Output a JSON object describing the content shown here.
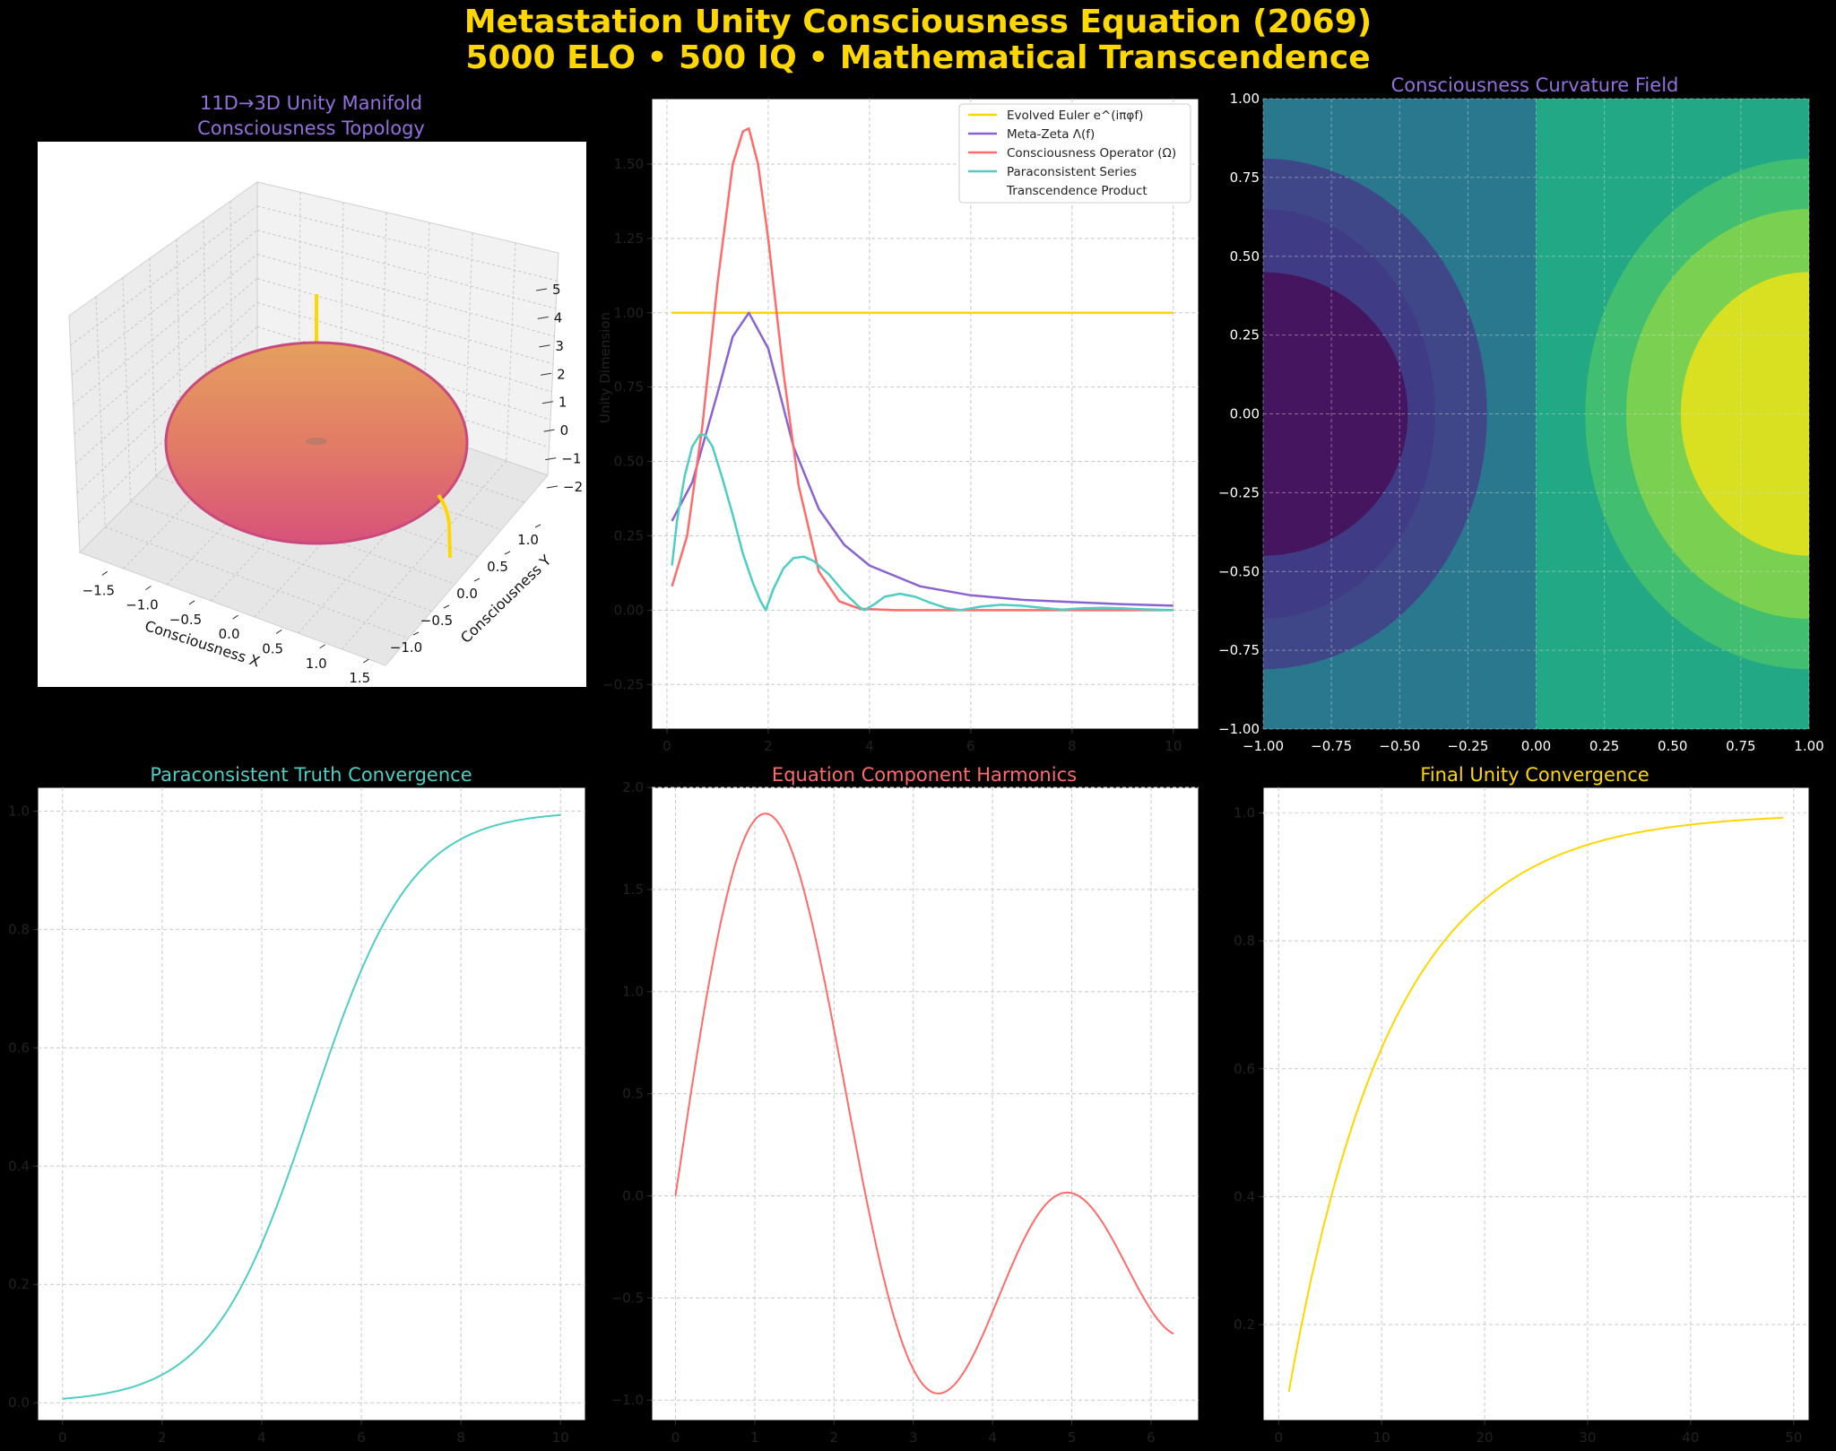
{
  "suptitle": [
    "Metastation Unity Consciousness Equation (2069)",
    "5000 ELO • 500 IQ • Mathematical Transcendence"
  ],
  "colors": {
    "gold": "#FFD700",
    "violet": "#9370DB",
    "red": "#FF6B6B",
    "teal": "#4ECDC4",
    "purple_line": "#8A63D2"
  },
  "chart_data": [
    {
      "id": "manifold",
      "type": "surface3d",
      "title": [
        "11D→3D Unity Manifold",
        "Consciousness Topology"
      ],
      "xlabel": "Consciousness X",
      "ylabel": "Consciousness Y",
      "xticks": [
        "−1.5",
        "−1.0",
        "−0.5",
        "0.0",
        "0.5",
        "1.0",
        "1.5"
      ],
      "yticks": [
        "−1.0",
        "−0.5",
        "0.0",
        "0.5",
        "1.0"
      ],
      "zticks": [
        "−2",
        "−1",
        "0",
        "1",
        "2",
        "3",
        "4",
        "5"
      ],
      "surface": "torus",
      "colormap": "plasma",
      "line_color": "#FFD700"
    },
    {
      "id": "components",
      "type": "line",
      "ylabel": "Unity Dimension",
      "xlim": [
        -0.3,
        10.5
      ],
      "ylim": [
        -0.4,
        1.72
      ],
      "xticks": [
        0,
        2,
        4,
        6,
        8,
        10
      ],
      "yticks": [
        -0.25,
        0.0,
        0.25,
        0.5,
        0.75,
        1.0,
        1.25,
        1.5
      ],
      "legend_position": "top-right",
      "series": [
        {
          "name": "Evolved Euler e^(iπφf)",
          "color": "#FFD700",
          "x": [
            0.1,
            10
          ],
          "y": [
            1.0,
            1.0
          ]
        },
        {
          "name": "Meta-Zeta Λ(f)",
          "color": "#8A63D2",
          "x": [
            0.1,
            0.5,
            1.0,
            1.3,
            1.618,
            2.0,
            2.5,
            3.0,
            3.5,
            4,
            5,
            6,
            7,
            8,
            9,
            10
          ],
          "y": [
            0.3,
            0.43,
            0.73,
            0.92,
            1.0,
            0.88,
            0.55,
            0.34,
            0.22,
            0.15,
            0.08,
            0.05,
            0.035,
            0.027,
            0.02,
            0.015
          ]
        },
        {
          "name": "Consciousness Operator (Ω)",
          "color": "#FF6B6B",
          "x": [
            0.1,
            0.4,
            0.7,
            1.0,
            1.3,
            1.5,
            1.618,
            1.8,
            2.0,
            2.3,
            2.6,
            3.0,
            3.4,
            3.8,
            4.5,
            6,
            8,
            10
          ],
          "y": [
            0.08,
            0.25,
            0.62,
            1.1,
            1.5,
            1.61,
            1.62,
            1.5,
            1.25,
            0.8,
            0.42,
            0.13,
            0.03,
            0.005,
            0.0,
            0.0,
            0.0,
            0.0
          ]
        },
        {
          "name": "Paraconsistent Series",
          "color": "#4ECDC4",
          "x": [
            0.1,
            0.2,
            0.35,
            0.5,
            0.65,
            0.75,
            0.9,
            1.1,
            1.3,
            1.5,
            1.7,
            1.85,
            1.95,
            2.1,
            2.3,
            2.5,
            2.7,
            2.9,
            3.2,
            3.5,
            3.8,
            3.9,
            4.1,
            4.3,
            4.6,
            4.9,
            5.2,
            5.5,
            5.8,
            6.2,
            6.6,
            7.0,
            7.4,
            7.8,
            8.2,
            8.6,
            9.0,
            9.4,
            10
          ],
          "y": [
            0.15,
            0.3,
            0.45,
            0.55,
            0.59,
            0.59,
            0.55,
            0.44,
            0.32,
            0.19,
            0.09,
            0.03,
            0.0,
            0.07,
            0.14,
            0.175,
            0.18,
            0.165,
            0.12,
            0.06,
            0.01,
            0.0,
            0.02,
            0.045,
            0.055,
            0.045,
            0.025,
            0.008,
            0.0,
            0.012,
            0.018,
            0.015,
            0.008,
            0.002,
            0.006,
            0.008,
            0.006,
            0.003,
            0.0
          ]
        },
        {
          "name": "Transcendence Product",
          "color": "#FFFFFF",
          "x": [],
          "y": []
        }
      ]
    },
    {
      "id": "curvature",
      "type": "heatmap",
      "title": "Consciousness Curvature Field",
      "xlim": [
        -1,
        1
      ],
      "ylim": [
        -1,
        1
      ],
      "xticks": [
        -1.0,
        -0.75,
        -0.5,
        -0.25,
        0.0,
        0.25,
        0.5,
        0.75,
        1.0
      ],
      "yticks": [
        -1.0,
        -0.75,
        -0.5,
        -0.25,
        0.0,
        0.25,
        0.5,
        0.75,
        1.0
      ],
      "colormap": "viridis",
      "levels": [
        "#46155F",
        "#3F4788",
        "#2A788E",
        "#22A884",
        "#42BE71",
        "#7AD151",
        "#D9E021"
      ]
    },
    {
      "id": "truth",
      "type": "line",
      "title": "Paraconsistent Truth Convergence",
      "xlim": [
        -0.5,
        10.5
      ],
      "ylim": [
        -0.03,
        1.04
      ],
      "xticks": [
        0,
        2,
        4,
        6,
        8,
        10
      ],
      "yticks": [
        0.0,
        0.2,
        0.4,
        0.6,
        0.8,
        1.0
      ],
      "series": [
        {
          "color": "#4ECDC4",
          "function": "logistic",
          "k": 1,
          "x0": 5,
          "xmin": 0,
          "xmax": 10
        }
      ]
    },
    {
      "id": "harmonics",
      "type": "line",
      "title": "Equation Component Harmonics",
      "xlim": [
        -0.3,
        6.6
      ],
      "ylim": [
        -1.1,
        2.0
      ],
      "xticks": [
        0,
        1,
        2,
        3,
        4,
        5,
        6
      ],
      "yticks": [
        -1.0,
        -0.5,
        0.0,
        0.5,
        1.0,
        1.5,
        2.0
      ],
      "series": [
        {
          "color": "#FF6B6B",
          "function": "sin(x)+sin(1.618x)",
          "xmin": 0,
          "xmax": 6.283
        }
      ]
    },
    {
      "id": "final",
      "type": "line",
      "title": "Final Unity Convergence",
      "xlim": [
        -1.5,
        51.5
      ],
      "ylim": [
        0.05,
        1.04
      ],
      "xticks": [
        0,
        10,
        20,
        30,
        40,
        50
      ],
      "yticks": [
        0.2,
        0.4,
        0.6,
        0.8,
        1.0
      ],
      "reference_line": 1.0,
      "series": [
        {
          "color": "#FFD700",
          "function": "1-exp(-n/10)",
          "xmin": 1,
          "xmax": 49
        }
      ]
    }
  ]
}
